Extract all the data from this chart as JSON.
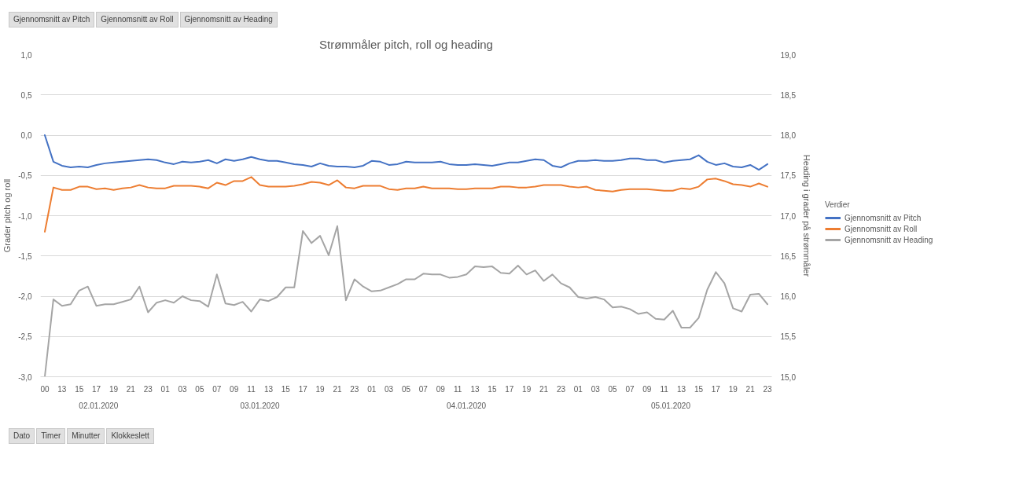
{
  "chart_data": {
    "type": "line",
    "title": "Strømmåler pitch, roll og heading",
    "ylabel": "Grader pitch og roll",
    "y2label": "Heading i grader på strømmåler",
    "legend_title": "Verdier",
    "categories": [
      "00",
      null,
      "13",
      null,
      "15",
      null,
      "17",
      null,
      "19",
      null,
      "21",
      null,
      "23",
      null,
      "01",
      null,
      "03",
      null,
      "05",
      null,
      "07",
      null,
      "09",
      null,
      "11",
      null,
      "13",
      null,
      "15",
      null,
      "17",
      null,
      "19",
      null,
      "21",
      null,
      "23",
      null,
      "01",
      null,
      "03",
      null,
      "05",
      null,
      "07",
      null,
      "09",
      null,
      "11",
      null,
      "13",
      null,
      "15",
      null,
      "17",
      null,
      "19",
      null,
      "21",
      null,
      "23",
      null,
      "01",
      null,
      "03",
      null,
      "05",
      null,
      "07",
      null,
      "09",
      null,
      "11",
      null,
      "13",
      null,
      "15",
      null,
      "17",
      null,
      "19",
      null,
      "21",
      null,
      "23"
    ],
    "series": [
      {
        "name": "Gjennomsnitt av Pitch",
        "color": "#4472c4",
        "values": [
          0.0,
          -0.33,
          -0.38,
          -0.4,
          -0.39,
          -0.4,
          -0.37,
          -0.35,
          -0.34,
          -0.33,
          -0.32,
          -0.31,
          -0.3,
          -0.31,
          -0.34,
          -0.36,
          -0.33,
          -0.34,
          -0.33,
          -0.31,
          -0.35,
          -0.3,
          -0.32,
          -0.3,
          -0.27,
          -0.3,
          -0.32,
          -0.32,
          -0.34,
          -0.36,
          -0.37,
          -0.39,
          -0.35,
          -0.38,
          -0.39,
          -0.39,
          -0.4,
          -0.38,
          -0.32,
          -0.33,
          -0.37,
          -0.36,
          -0.33,
          -0.34,
          -0.34,
          -0.34,
          -0.33,
          -0.36,
          -0.37,
          -0.37,
          -0.36,
          -0.37,
          -0.38,
          -0.36,
          -0.34,
          -0.34,
          -0.32,
          -0.3,
          -0.31,
          -0.38,
          -0.4,
          -0.35,
          -0.32,
          -0.32,
          -0.31,
          -0.32,
          -0.32,
          -0.31,
          -0.29,
          -0.29,
          -0.31,
          -0.31,
          -0.34,
          -0.32,
          -0.31,
          -0.3,
          -0.25,
          -0.33,
          -0.37,
          -0.35,
          -0.39,
          -0.4,
          -0.37,
          -0.43,
          -0.36
        ]
      },
      {
        "name": "Gjennomsnitt av Roll",
        "color": "#ed7d31",
        "values": [
          -1.2,
          -0.65,
          -0.68,
          -0.68,
          -0.64,
          -0.64,
          -0.67,
          -0.66,
          -0.68,
          -0.66,
          -0.65,
          -0.62,
          -0.65,
          -0.66,
          -0.66,
          -0.63,
          -0.63,
          -0.63,
          -0.64,
          -0.66,
          -0.59,
          -0.62,
          -0.57,
          -0.57,
          -0.52,
          -0.62,
          -0.64,
          -0.64,
          -0.64,
          -0.63,
          -0.61,
          -0.58,
          -0.59,
          -0.62,
          -0.56,
          -0.65,
          -0.66,
          -0.63,
          -0.63,
          -0.63,
          -0.67,
          -0.68,
          -0.66,
          -0.66,
          -0.64,
          -0.66,
          -0.66,
          -0.66,
          -0.67,
          -0.67,
          -0.66,
          -0.66,
          -0.66,
          -0.64,
          -0.64,
          -0.65,
          -0.65,
          -0.64,
          -0.62,
          -0.62,
          -0.62,
          -0.64,
          -0.65,
          -0.64,
          -0.68,
          -0.69,
          -0.7,
          -0.68,
          -0.67,
          -0.67,
          -0.67,
          -0.68,
          -0.69,
          -0.69,
          -0.66,
          -0.67,
          -0.64,
          -0.55,
          -0.54,
          -0.57,
          -0.61,
          -0.62,
          -0.64,
          -0.6,
          -0.64
        ]
      },
      {
        "name": "Gjennomsnitt av Heading",
        "color": "#a5a5a5",
        "axis": "y2",
        "values": [
          15.0,
          15.96,
          15.88,
          15.9,
          16.07,
          16.12,
          15.88,
          15.9,
          15.9,
          15.93,
          15.96,
          16.12,
          15.8,
          15.92,
          15.95,
          15.92,
          16.0,
          15.95,
          15.94,
          15.87,
          16.27,
          15.91,
          15.89,
          15.93,
          15.81,
          15.96,
          15.94,
          15.99,
          16.11,
          16.11,
          16.81,
          16.66,
          16.75,
          16.51,
          16.87,
          15.95,
          16.21,
          16.12,
          16.06,
          16.07,
          16.11,
          16.15,
          16.21,
          16.21,
          16.28,
          16.27,
          16.27,
          16.23,
          16.24,
          16.27,
          16.37,
          16.36,
          16.37,
          16.29,
          16.28,
          16.38,
          16.27,
          16.32,
          16.19,
          16.27,
          16.16,
          16.11,
          15.99,
          15.97,
          15.99,
          15.96,
          15.86,
          15.87,
          15.84,
          15.78,
          15.8,
          15.72,
          15.71,
          15.82,
          15.61,
          15.61,
          15.73,
          16.08,
          16.3,
          16.16,
          15.85,
          15.81,
          16.02,
          16.03,
          15.9
        ]
      }
    ],
    "ylim": [
      -3.0,
      1.0
    ],
    "yticks": [
      {
        "value": -3.0,
        "label": "-3,0"
      },
      {
        "value": -2.5,
        "label": "-2,5"
      },
      {
        "value": -2.0,
        "label": "-2,0"
      },
      {
        "value": -1.5,
        "label": "-1,5"
      },
      {
        "value": -1.0,
        "label": "-1,0"
      },
      {
        "value": -0.5,
        "label": "-0,5"
      },
      {
        "value": 0.0,
        "label": "0,0"
      },
      {
        "value": 0.5,
        "label": "0,5"
      },
      {
        "value": 1.0,
        "label": "1,0"
      }
    ],
    "y2lim": [
      15.0,
      19.0
    ],
    "y2ticks": [
      {
        "value": 15.0,
        "label": "15,0"
      },
      {
        "value": 15.5,
        "label": "15,5"
      },
      {
        "value": 16.0,
        "label": "16,0"
      },
      {
        "value": 16.5,
        "label": "16,5"
      },
      {
        "value": 17.0,
        "label": "17,0"
      },
      {
        "value": 17.5,
        "label": "17,5"
      },
      {
        "value": 18.0,
        "label": "18,0"
      },
      {
        "value": 18.5,
        "label": "18,5"
      },
      {
        "value": 19.0,
        "label": "19,0"
      }
    ],
    "grid": "y",
    "legend": "right",
    "annotations": [
      "02.01.2020",
      "03.01.2020",
      "04.01.2020",
      "05.01.2020",
      "Gjennomsnitt av Pitch",
      "Gjennomsnitt av Roll",
      "Gjennomsnitt av Heading",
      "Dato",
      "Timer",
      "Minutter",
      "Klokkeslett"
    ]
  }
}
